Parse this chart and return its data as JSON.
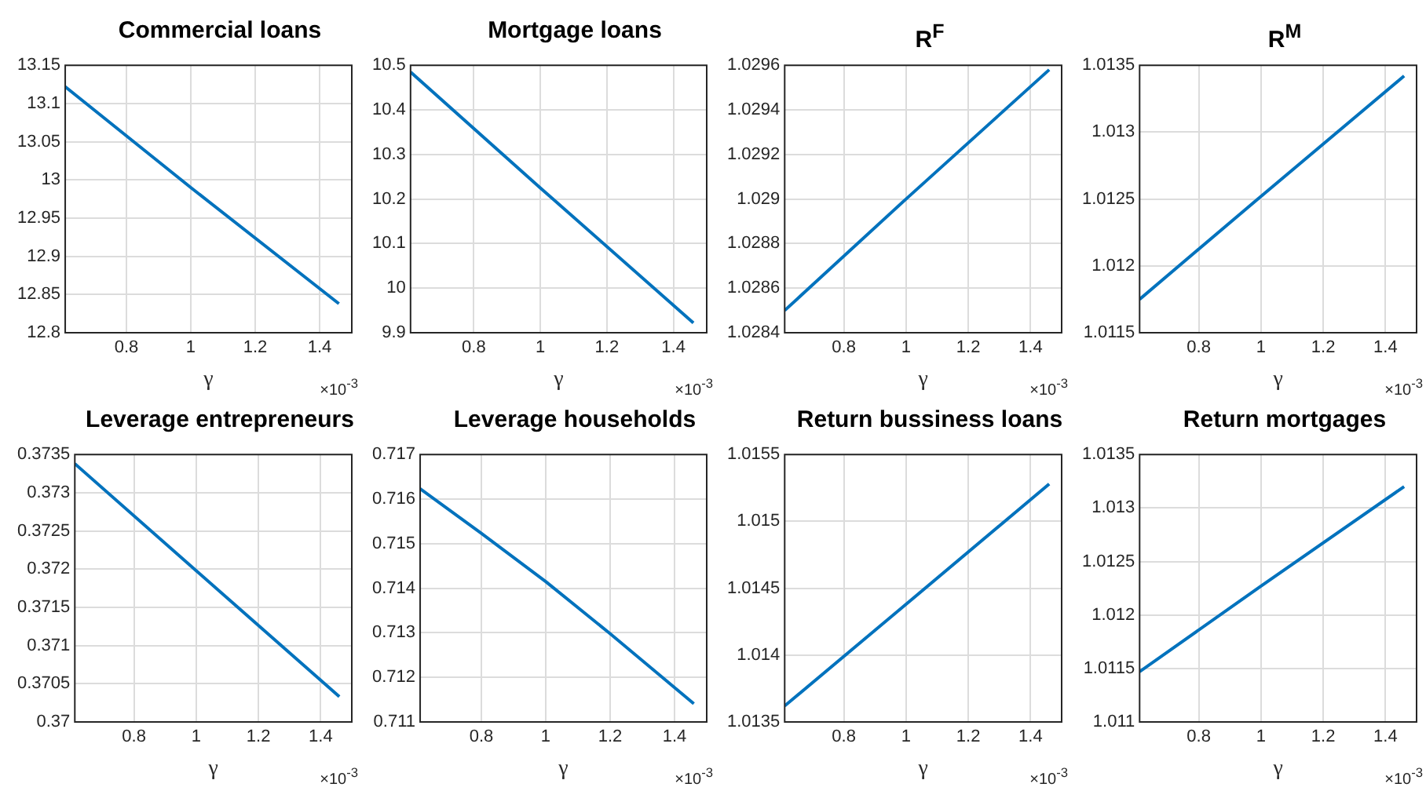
{
  "chart_data": [
    {
      "type": "line",
      "title": "Commercial loans",
      "xlabel": "γ",
      "x": [
        0.61,
        1,
        1.46
      ],
      "values": [
        13.122,
        12.99,
        12.838
      ],
      "color": "#0072bd",
      "xlim": [
        0.61,
        1.5
      ],
      "xticks": [
        0.8,
        1,
        1.2,
        1.4
      ],
      "ylim": [
        12.8,
        13.15
      ],
      "yticks": [
        12.8,
        12.85,
        12.9,
        12.95,
        13,
        13.05,
        13.1,
        13.15
      ],
      "grid": true,
      "marker": "none",
      "annotations": [
        "×10$^{-3}$"
      ]
    },
    {
      "type": "line",
      "title": "Mortgage loans",
      "xlabel": "γ",
      "x": [
        0.61,
        1,
        1.46
      ],
      "values": [
        10.485,
        10.225,
        9.922
      ],
      "color": "#0072bd",
      "xlim": [
        0.61,
        1.5
      ],
      "xticks": [
        0.8,
        1,
        1.2,
        1.4
      ],
      "ylim": [
        9.9,
        10.5
      ],
      "yticks": [
        9.9,
        10,
        10.1,
        10.2,
        10.3,
        10.4,
        10.5
      ],
      "grid": true,
      "marker": "none",
      "annotations": [
        "×10$^{-3}$"
      ]
    },
    {
      "type": "line",
      "title": "R$^{F}$",
      "xlabel": "γ",
      "x": [
        0.61,
        1,
        1.46
      ],
      "values": [
        1.0285,
        1.029,
        1.02958
      ],
      "color": "#0072bd",
      "xlim": [
        0.61,
        1.5
      ],
      "xticks": [
        0.8,
        1,
        1.2,
        1.4
      ],
      "ylim": [
        1.0284,
        1.0296
      ],
      "yticks": [
        1.0284,
        1.0286,
        1.0288,
        1.029,
        1.0292,
        1.0294,
        1.0296
      ],
      "grid": true,
      "marker": "none",
      "annotations": [
        "×10$^{-3}$"
      ]
    },
    {
      "type": "line",
      "title": "R$^{M}$",
      "xlabel": "γ",
      "x": [
        0.61,
        1,
        1.46
      ],
      "values": [
        1.01175,
        1.01252,
        1.01342
      ],
      "color": "#0072bd",
      "xlim": [
        0.61,
        1.5
      ],
      "xticks": [
        0.8,
        1,
        1.2,
        1.4
      ],
      "ylim": [
        1.0115,
        1.0135
      ],
      "yticks": [
        1.0115,
        1.012,
        1.0125,
        1.013,
        1.0135
      ],
      "grid": true,
      "marker": "none",
      "annotations": [
        "×10$^{-3}$"
      ]
    },
    {
      "type": "line",
      "title": "Leverage entrepreneurs",
      "xlabel": "γ",
      "x": [
        0.61,
        1,
        1.46
      ],
      "values": [
        0.37338,
        0.37198,
        0.37033
      ],
      "color": "#0072bd",
      "xlim": [
        0.61,
        1.5
      ],
      "xticks": [
        0.8,
        1,
        1.2,
        1.4
      ],
      "ylim": [
        0.37,
        0.3735
      ],
      "yticks": [
        0.37,
        0.3705,
        0.371,
        0.3715,
        0.372,
        0.3725,
        0.373,
        0.3735
      ],
      "grid": true,
      "marker": "none",
      "annotations": [
        "×10$^{-3}$"
      ]
    },
    {
      "type": "line",
      "title": "Leverage households",
      "xlabel": "γ",
      "x": [
        0.61,
        0.8,
        1,
        1.2,
        1.46
      ],
      "values": [
        0.71623,
        0.71523,
        0.71415,
        0.71298,
        0.71141
      ],
      "color": "#0072bd",
      "xlim": [
        0.61,
        1.5
      ],
      "xticks": [
        0.8,
        1,
        1.2,
        1.4
      ],
      "ylim": [
        0.711,
        0.717
      ],
      "yticks": [
        0.711,
        0.712,
        0.713,
        0.714,
        0.715,
        0.716,
        0.717
      ],
      "grid": true,
      "marker": "none",
      "annotations": [
        "×10$^{-3}$"
      ]
    },
    {
      "type": "line",
      "title": "Return bussiness loans",
      "xlabel": "γ",
      "x": [
        0.61,
        1,
        1.46
      ],
      "values": [
        1.01362,
        1.01438,
        1.01528
      ],
      "color": "#0072bd",
      "xlim": [
        0.61,
        1.5
      ],
      "xticks": [
        0.8,
        1,
        1.2,
        1.4
      ],
      "ylim": [
        1.0135,
        1.0155
      ],
      "yticks": [
        1.0135,
        1.014,
        1.0145,
        1.015,
        1.0155
      ],
      "grid": true,
      "marker": "none",
      "annotations": [
        "×10$^{-3}$"
      ]
    },
    {
      "type": "line",
      "title": "Return mortgages",
      "xlabel": "γ",
      "x": [
        0.61,
        1,
        1.46
      ],
      "values": [
        1.01147,
        1.01227,
        1.0132
      ],
      "color": "#0072bd",
      "xlim": [
        0.61,
        1.5
      ],
      "xticks": [
        0.8,
        1,
        1.2,
        1.4
      ],
      "ylim": [
        1.011,
        1.0135
      ],
      "yticks": [
        1.011,
        1.0115,
        1.012,
        1.0125,
        1.013,
        1.0135
      ],
      "grid": true,
      "marker": "none",
      "annotations": [
        "×10$^{-3}$"
      ]
    }
  ]
}
